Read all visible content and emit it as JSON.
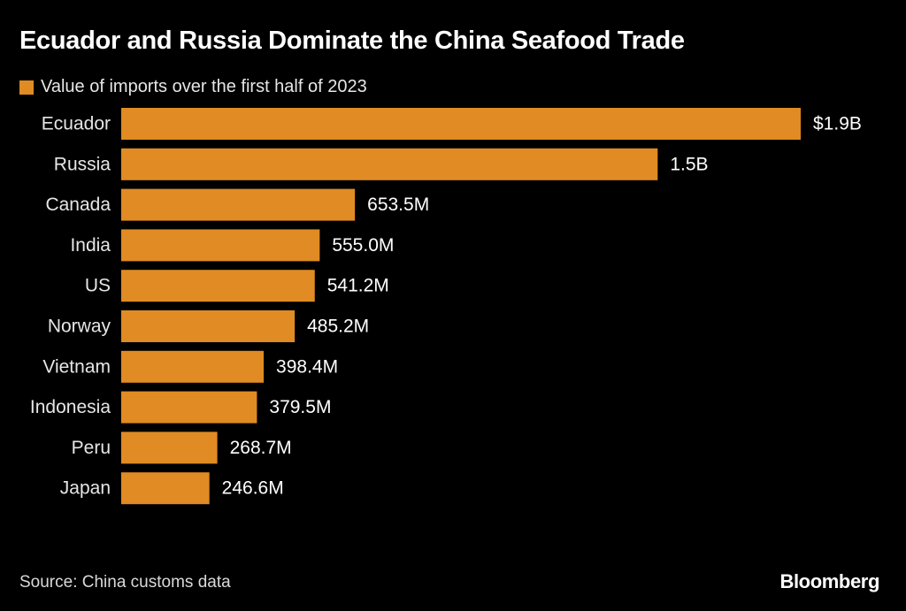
{
  "title": "Ecuador and Russia Dominate the China Seafood Trade",
  "legend": {
    "label": "Value of imports over the first half of 2023"
  },
  "colors": {
    "bar": "#E08B23",
    "background": "#000000",
    "text": "#FFFFFF"
  },
  "source": "Source: China customs data",
  "brand": "Bloomberg",
  "chart_data": {
    "type": "bar",
    "orientation": "horizontal",
    "title": "Ecuador and Russia Dominate the China Seafood Trade",
    "xlabel": "",
    "ylabel": "",
    "unit": "USD",
    "categories": [
      "Ecuador",
      "Russia",
      "Canada",
      "India",
      "US",
      "Norway",
      "Vietnam",
      "Indonesia",
      "Peru",
      "Japan"
    ],
    "values": [
      1900000000,
      1500000000,
      653500000,
      555000000,
      541200000,
      485200000,
      398400000,
      379500000,
      268700000,
      246600000
    ],
    "labels": [
      "$1.9B",
      "1.5B",
      "653.5M",
      "555.0M",
      "541.2M",
      "485.2M",
      "398.4M",
      "379.5M",
      "268.7M",
      "246.6M"
    ],
    "series": [
      {
        "name": "Value of imports over the first half of 2023",
        "values": [
          1900000000,
          1500000000,
          653500000,
          555000000,
          541200000,
          485200000,
          398400000,
          379500000,
          268700000,
          246600000
        ]
      }
    ],
    "xlim": [
      0,
      1900000000
    ],
    "grid": false,
    "legend_position": "top-left"
  }
}
